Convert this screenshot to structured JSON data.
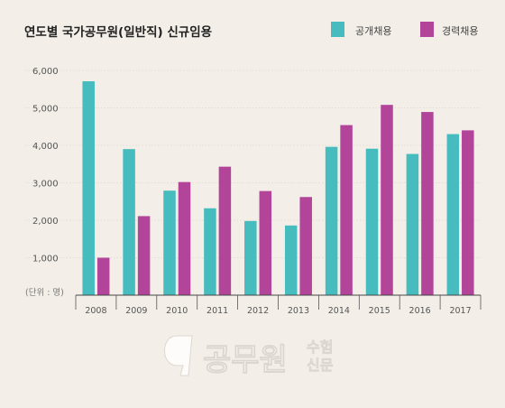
{
  "chart_data": {
    "type": "bar",
    "title": "연도별 국가공무원(일반직) 신규임용",
    "unit_label": "(단위 : 명)",
    "categories": [
      "2008",
      "2009",
      "2010",
      "2011",
      "2012",
      "2013",
      "2014",
      "2015",
      "2016",
      "2017"
    ],
    "series": [
      {
        "name": "공개채용",
        "color": "#46bcbf",
        "values": [
          5710,
          3900,
          2790,
          2320,
          1980,
          1860,
          3960,
          3910,
          3770,
          4300
        ]
      },
      {
        "name": "경력채용",
        "color": "#b2449a",
        "values": [
          1000,
          2110,
          3020,
          3430,
          2780,
          2620,
          4540,
          5080,
          4890,
          4400
        ]
      }
    ],
    "ylim": [
      0,
      6000
    ],
    "yticks": [
      1000,
      2000,
      3000,
      4000,
      5000,
      6000
    ],
    "ytick_labels": [
      "1,000",
      "2,000",
      "3,000",
      "4,000",
      "5,000",
      "6,000"
    ],
    "grid": true,
    "legend_position": "top-right"
  },
  "watermark": {
    "logo_text": "공무원",
    "side_text_1": "수험",
    "side_text_2": "신문"
  }
}
